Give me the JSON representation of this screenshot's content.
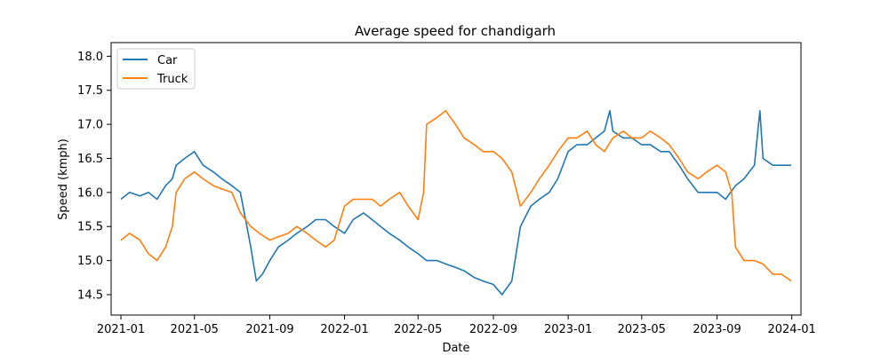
{
  "chart_data": {
    "type": "line",
    "title": "Average speed for chandigarh",
    "xlabel": "Date",
    "ylabel": "Speed (kmph)",
    "xlim": [
      "2020-12-16",
      "2024-01-16"
    ],
    "ylim": [
      14.2,
      18.2
    ],
    "x_ticks": [
      "2021-01",
      "2021-05",
      "2021-09",
      "2022-01",
      "2022-05",
      "2022-09",
      "2023-01",
      "2023-05",
      "2023-09",
      "2024-01"
    ],
    "y_ticks": [
      "14.5",
      "15.0",
      "15.5",
      "16.0",
      "16.5",
      "17.0",
      "17.5",
      "18.0"
    ],
    "legend_position": "top-left",
    "grid": false,
    "series": [
      {
        "name": "Car",
        "color": "#1f77b4",
        "x": [
          "2021-01-01",
          "2021-01-15",
          "2021-02-01",
          "2021-02-15",
          "2021-03-01",
          "2021-03-15",
          "2021-03-26",
          "2021-04-01",
          "2021-04-15",
          "2021-05-01",
          "2021-05-15",
          "2021-06-01",
          "2021-06-15",
          "2021-07-01",
          "2021-07-15",
          "2021-08-01",
          "2021-08-10",
          "2021-08-20",
          "2021-09-01",
          "2021-09-15",
          "2021-10-01",
          "2021-10-15",
          "2021-11-01",
          "2021-11-15",
          "2021-12-01",
          "2021-12-15",
          "2022-01-01",
          "2022-01-15",
          "2022-02-01",
          "2022-02-15",
          "2022-03-01",
          "2022-03-15",
          "2022-04-01",
          "2022-04-15",
          "2022-05-01",
          "2022-05-15",
          "2022-06-01",
          "2022-06-15",
          "2022-07-01",
          "2022-07-15",
          "2022-08-01",
          "2022-08-15",
          "2022-09-01",
          "2022-09-15",
          "2022-10-01",
          "2022-10-15",
          "2022-11-01",
          "2022-11-15",
          "2022-12-01",
          "2022-12-15",
          "2023-01-01",
          "2023-01-15",
          "2023-02-01",
          "2023-02-15",
          "2023-03-01",
          "2023-03-10",
          "2023-03-15",
          "2023-04-01",
          "2023-04-15",
          "2023-05-01",
          "2023-05-15",
          "2023-06-01",
          "2023-06-15",
          "2023-07-01",
          "2023-07-15",
          "2023-08-01",
          "2023-08-15",
          "2023-09-01",
          "2023-09-15",
          "2023-10-01",
          "2023-10-15",
          "2023-11-01",
          "2023-11-10",
          "2023-11-15",
          "2023-12-01",
          "2023-12-15",
          "2023-12-31"
        ],
        "values": [
          15.9,
          16.0,
          15.95,
          16.0,
          15.9,
          16.1,
          16.2,
          16.4,
          16.5,
          16.6,
          16.4,
          16.3,
          16.2,
          16.1,
          16.0,
          15.2,
          14.7,
          14.8,
          15.0,
          15.2,
          15.3,
          15.4,
          15.5,
          15.6,
          15.6,
          15.5,
          15.4,
          15.6,
          15.7,
          15.6,
          15.5,
          15.4,
          15.3,
          15.2,
          15.1,
          15.0,
          15.0,
          14.95,
          14.9,
          14.85,
          14.75,
          14.7,
          14.65,
          14.5,
          14.7,
          15.5,
          15.8,
          15.9,
          16.0,
          16.2,
          16.6,
          16.7,
          16.7,
          16.8,
          16.9,
          17.2,
          16.9,
          16.8,
          16.8,
          16.7,
          16.7,
          16.6,
          16.6,
          16.4,
          16.2,
          16.0,
          16.0,
          16.0,
          15.9,
          16.1,
          16.2,
          16.4,
          17.2,
          16.5,
          16.4,
          16.4,
          16.4
        ]
      },
      {
        "name": "Truck",
        "color": "#ff7f0e",
        "x": [
          "2021-01-01",
          "2021-01-15",
          "2021-02-01",
          "2021-02-15",
          "2021-03-01",
          "2021-03-15",
          "2021-03-26",
          "2021-04-01",
          "2021-04-15",
          "2021-05-01",
          "2021-05-15",
          "2021-06-01",
          "2021-06-15",
          "2021-07-01",
          "2021-07-15",
          "2021-08-01",
          "2021-08-15",
          "2021-09-01",
          "2021-09-15",
          "2021-10-01",
          "2021-10-15",
          "2021-11-01",
          "2021-11-15",
          "2021-12-01",
          "2021-12-15",
          "2022-01-01",
          "2022-01-15",
          "2022-02-01",
          "2022-02-15",
          "2022-03-01",
          "2022-03-15",
          "2022-04-01",
          "2022-04-15",
          "2022-05-01",
          "2022-05-10",
          "2022-05-15",
          "2022-06-01",
          "2022-06-15",
          "2022-07-01",
          "2022-07-15",
          "2022-08-01",
          "2022-08-15",
          "2022-09-01",
          "2022-09-15",
          "2022-10-01",
          "2022-10-15",
          "2022-11-01",
          "2022-11-15",
          "2022-12-01",
          "2022-12-15",
          "2023-01-01",
          "2023-01-15",
          "2023-02-01",
          "2023-02-15",
          "2023-03-01",
          "2023-03-15",
          "2023-04-01",
          "2023-04-15",
          "2023-05-01",
          "2023-05-15",
          "2023-06-01",
          "2023-06-15",
          "2023-07-01",
          "2023-07-15",
          "2023-08-01",
          "2023-08-15",
          "2023-09-01",
          "2023-09-15",
          "2023-09-25",
          "2023-10-01",
          "2023-10-15",
          "2023-11-01",
          "2023-11-15",
          "2023-12-01",
          "2023-12-15",
          "2023-12-31"
        ],
        "values": [
          15.3,
          15.4,
          15.3,
          15.1,
          15.0,
          15.2,
          15.5,
          16.0,
          16.2,
          16.3,
          16.2,
          16.1,
          16.05,
          16.0,
          15.7,
          15.5,
          15.4,
          15.3,
          15.35,
          15.4,
          15.5,
          15.4,
          15.3,
          15.2,
          15.3,
          15.8,
          15.9,
          15.9,
          15.9,
          15.8,
          15.9,
          16.0,
          15.8,
          15.6,
          16.0,
          17.0,
          17.1,
          17.2,
          17.0,
          16.8,
          16.7,
          16.6,
          16.6,
          16.5,
          16.3,
          15.8,
          16.0,
          16.2,
          16.4,
          16.6,
          16.8,
          16.8,
          16.9,
          16.7,
          16.6,
          16.8,
          16.9,
          16.8,
          16.8,
          16.9,
          16.8,
          16.7,
          16.5,
          16.3,
          16.2,
          16.3,
          16.4,
          16.3,
          16.0,
          15.2,
          15.0,
          15.0,
          14.95,
          14.8,
          14.8,
          14.7
        ]
      }
    ]
  }
}
